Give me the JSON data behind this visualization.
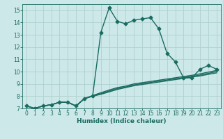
{
  "xlabel": "Humidex (Indice chaleur)",
  "bg_color": "#cce8e8",
  "line_color": "#1a6b60",
  "grid_color": "#b0d0d0",
  "xlim": [
    -0.5,
    23.5
  ],
  "ylim": [
    7,
    15.5
  ],
  "xticks": [
    0,
    1,
    2,
    3,
    4,
    5,
    6,
    7,
    8,
    9,
    10,
    11,
    12,
    13,
    14,
    15,
    16,
    17,
    18,
    19,
    20,
    21,
    22,
    23
  ],
  "yticks": [
    7,
    8,
    9,
    10,
    11,
    12,
    13,
    14,
    15
  ],
  "main_y": [
    7.2,
    7.0,
    7.2,
    7.3,
    7.5,
    7.5,
    7.2,
    7.8,
    8.0,
    13.2,
    15.2,
    14.1,
    13.9,
    14.2,
    14.3,
    14.4,
    13.5,
    11.5,
    10.8,
    9.5,
    9.5,
    10.2,
    10.5,
    10.2
  ],
  "band_lines": [
    [
      7.2,
      7.0,
      7.2,
      7.3,
      7.5,
      7.5,
      7.2,
      7.8,
      8.0,
      8.15,
      8.35,
      8.55,
      8.7,
      8.85,
      8.95,
      9.05,
      9.15,
      9.25,
      9.35,
      9.45,
      9.55,
      9.65,
      9.78,
      9.9
    ],
    [
      7.2,
      7.0,
      7.2,
      7.3,
      7.5,
      7.5,
      7.2,
      7.8,
      8.0,
      8.2,
      8.42,
      8.62,
      8.75,
      8.92,
      9.02,
      9.12,
      9.22,
      9.32,
      9.42,
      9.52,
      9.62,
      9.72,
      9.86,
      10.0
    ],
    [
      7.2,
      7.0,
      7.2,
      7.3,
      7.5,
      7.5,
      7.2,
      7.8,
      8.05,
      8.28,
      8.5,
      8.7,
      8.82,
      9.0,
      9.1,
      9.2,
      9.3,
      9.4,
      9.5,
      9.6,
      9.7,
      9.82,
      9.96,
      10.1
    ]
  ],
  "marker": "D",
  "marker_size": 2.5,
  "linewidth": 1.0
}
